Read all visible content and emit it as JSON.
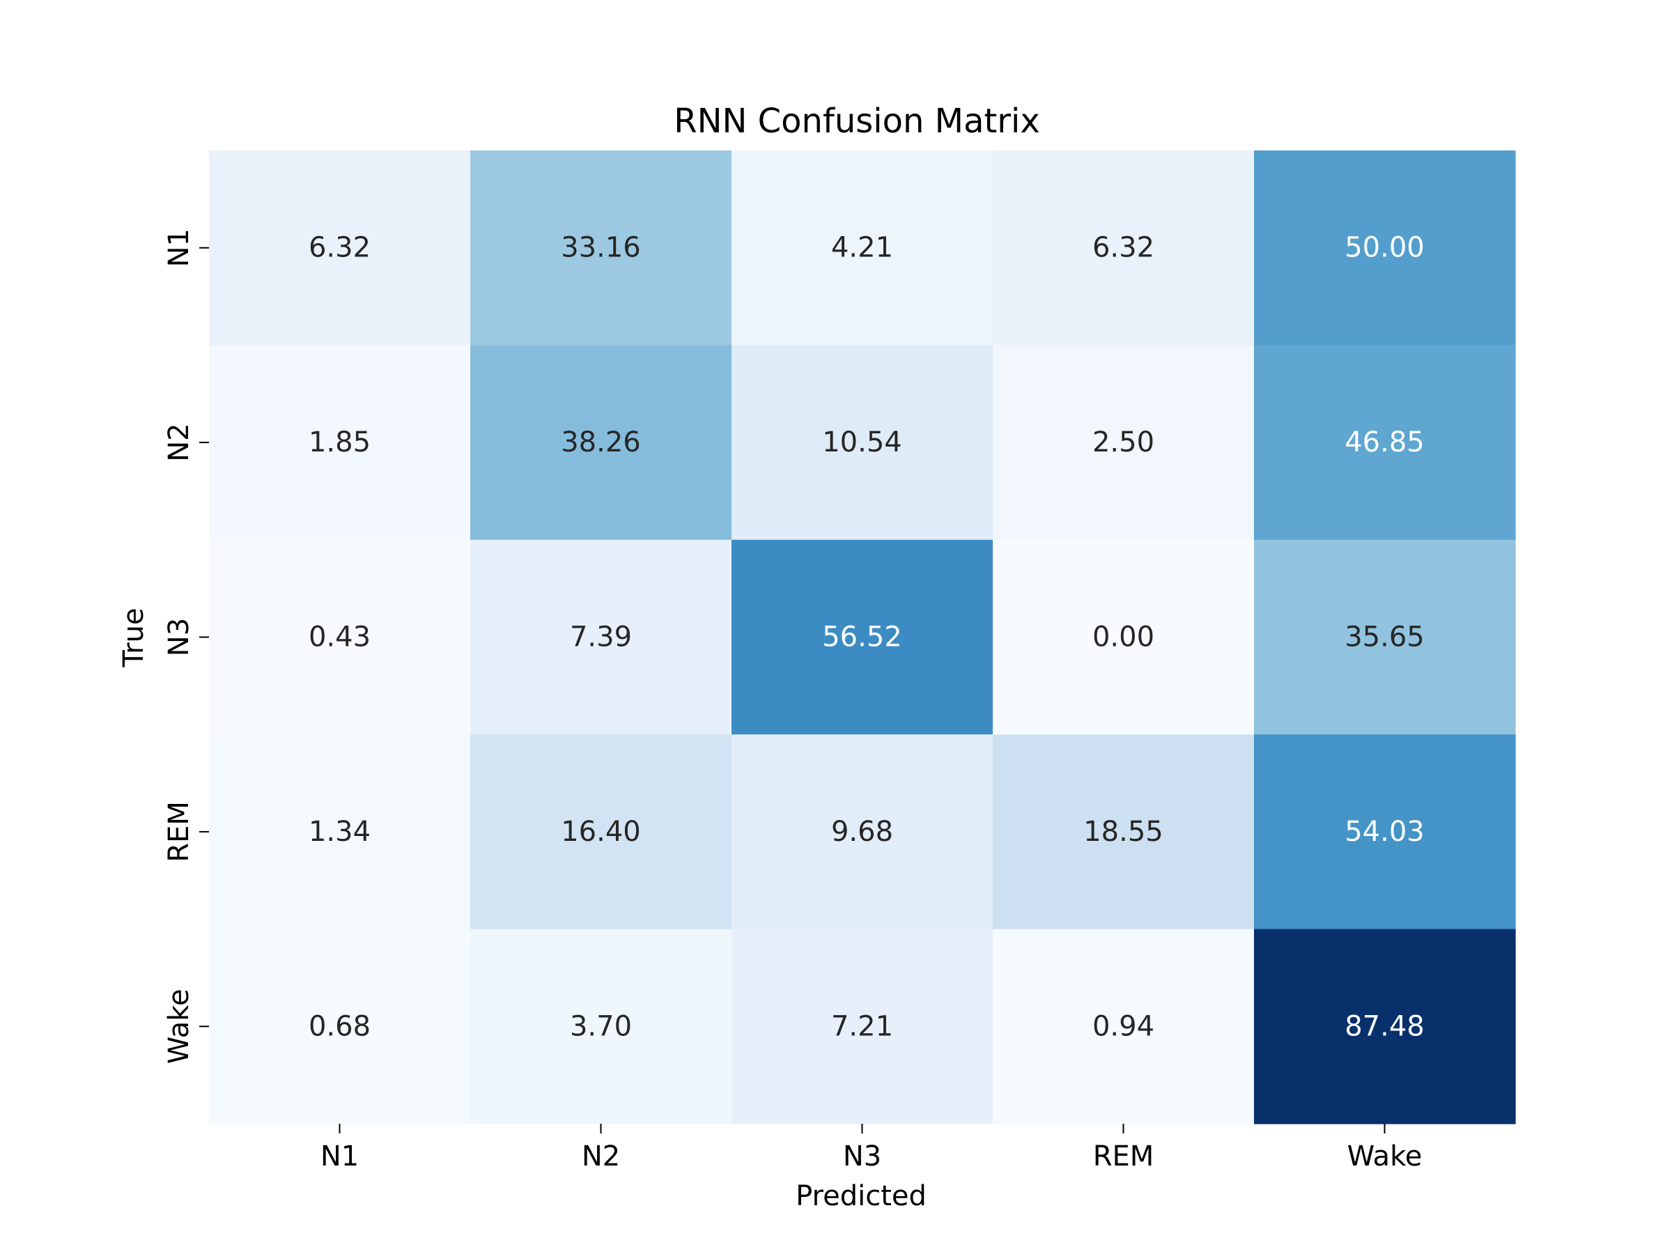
{
  "chart_data": {
    "type": "heatmap",
    "title": "RNN Confusion Matrix",
    "xlabel": "Predicted",
    "ylabel": "True",
    "x_categories": [
      "N1",
      "N2",
      "N3",
      "REM",
      "Wake"
    ],
    "y_categories": [
      "N1",
      "N2",
      "N3",
      "REM",
      "Wake"
    ],
    "values": [
      [
        6.32,
        33.16,
        4.21,
        6.32,
        50.0
      ],
      [
        1.85,
        38.26,
        10.54,
        2.5,
        46.85
      ],
      [
        0.43,
        7.39,
        56.52,
        0.0,
        35.65
      ],
      [
        1.34,
        16.4,
        9.68,
        18.55,
        54.03
      ],
      [
        0.68,
        3.7,
        7.21,
        0.94,
        87.48
      ]
    ],
    "value_format": "0.00",
    "colormap": "Blues",
    "color_range": [
      0,
      87.48
    ],
    "colorbar": false,
    "grid": false
  }
}
